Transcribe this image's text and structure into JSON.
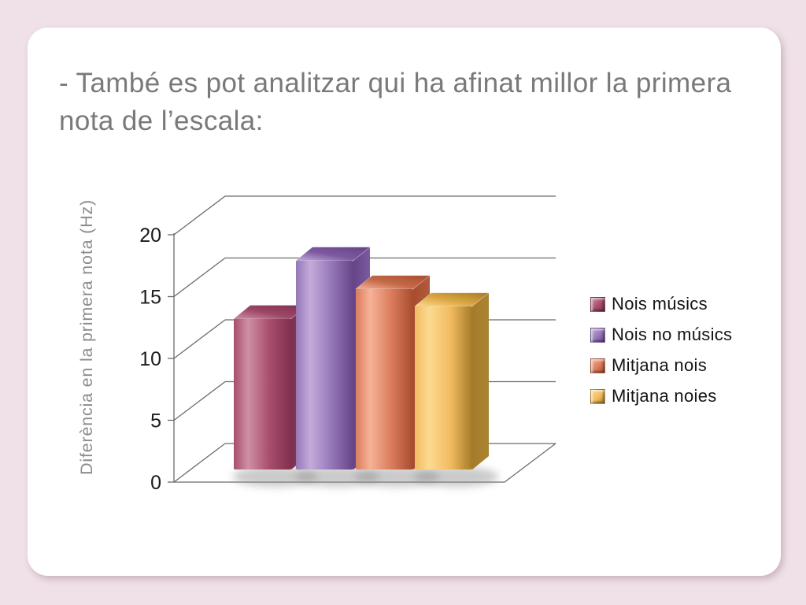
{
  "slide": {
    "title": "- També es pot analitzar qui ha afinat millor la primera nota de l’escala:",
    "title_color": "#7b787b",
    "background_color": "#f0e1e8",
    "card_color": "#ffffff"
  },
  "chart_data": {
    "type": "bar",
    "projection": "3d",
    "title": "",
    "xlabel": "",
    "ylabel": "Diferència en la primera nota (Hz)",
    "ylim": [
      0,
      20
    ],
    "yticks": [
      0,
      5,
      10,
      15,
      20
    ],
    "grid": true,
    "legend_position": "right",
    "categories": [
      "Nois músics",
      "Nois no músics",
      "Mitjana nois",
      "Mitjana noies"
    ],
    "values": [
      12.2,
      16.9,
      14.6,
      13.2
    ],
    "legend": [
      "Nois músics",
      "Nois no músics",
      "Mitjana nois",
      "Mitjana noies"
    ],
    "bar_colors": [
      {
        "light": "#cf8fa6",
        "base": "#a84e6c",
        "dark": "#80304f",
        "side": "#8d3f5e",
        "top": "#9d4566"
      },
      {
        "light": "#c3abdb",
        "base": "#9577b7",
        "dark": "#664488",
        "side": "#7b5ba0",
        "top": "#7d589f"
      },
      {
        "light": "#f6b397",
        "base": "#da7c5c",
        "dark": "#a84c2e",
        "side": "#b05c3c",
        "top": "#c46a49"
      },
      {
        "light": "#fcda92",
        "base": "#f2bb60",
        "dark": "#a57b29",
        "side": "#ab8433",
        "top": "#dca843"
      }
    ],
    "tick_color": "#1a1a1a",
    "axis_label_color": "#8c8c8c",
    "line_color": "#6b6b6b"
  }
}
